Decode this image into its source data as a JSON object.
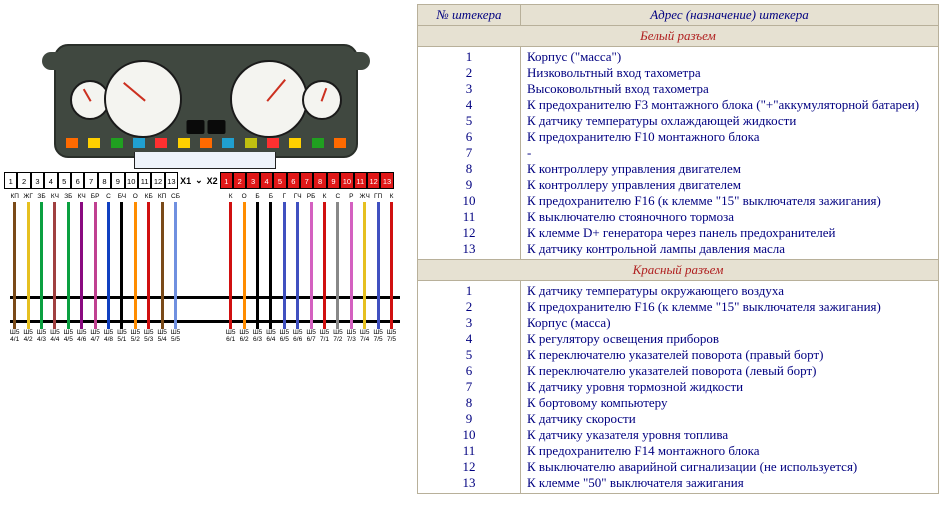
{
  "table": {
    "headers": {
      "col1": "№ штекера",
      "col2": "Адрес (назначение) штекера"
    },
    "section1_title": "Белый разъем",
    "section1_rows": [
      {
        "n": "1",
        "d": "Корпус (\"масса\")"
      },
      {
        "n": "2",
        "d": "Низковольтный вход тахометра"
      },
      {
        "n": "3",
        "d": "Высоковольтный вход тахометра"
      },
      {
        "n": "4",
        "d": "К предохранителю F3 монтажного блока (\"+\"аккумуляторной батареи)"
      },
      {
        "n": "5",
        "d": "К датчику температуры охлаждающей жидкости"
      },
      {
        "n": "6",
        "d": "К предохранителю F10 монтажного блока"
      },
      {
        "n": "7",
        "d": "-"
      },
      {
        "n": "8",
        "d": "К контроллеру управления двигателем"
      },
      {
        "n": "9",
        "d": "К контроллеру управления двигателем"
      },
      {
        "n": "10",
        "d": "К предохранителю F16 (к клемме \"15\" выключателя зажигания)"
      },
      {
        "n": "11",
        "d": "К выключателю стояночного тормоза"
      },
      {
        "n": "12",
        "d": "К клемме D+ генератора через панель предохранителей"
      },
      {
        "n": "13",
        "d": "К датчику контрольной лампы давления масла"
      }
    ],
    "section2_title": "Красный разъем",
    "section2_rows": [
      {
        "n": "1",
        "d": "К датчику температуры окружающего воздуха"
      },
      {
        "n": "2",
        "d": "К предохранителю F16 (к клемме \"15\" выключателя зажигания)"
      },
      {
        "n": "3",
        "d": "Корпус (масса)"
      },
      {
        "n": "4",
        "d": "К регулятору освещения приборов"
      },
      {
        "n": "5",
        "d": "К переключателю указателей поворота (правый борт)"
      },
      {
        "n": "6",
        "d": "К переключателю указателей поворота (левый борт)"
      },
      {
        "n": "7",
        "d": "К датчику уровня тормозной жидкости"
      },
      {
        "n": "8",
        "d": "К бортовому компьютеру"
      },
      {
        "n": "9",
        "d": "К датчику скорости"
      },
      {
        "n": "10",
        "d": "К датчику указателя уровня топлива"
      },
      {
        "n": "11",
        "d": "К предохранителю F14 монтажного блока"
      },
      {
        "n": "12",
        "d": "К выключателю аварийной сигнализации (не используется)"
      },
      {
        "n": "13",
        "d": "К клемме \"50\" выключателя зажигания"
      }
    ]
  },
  "colors": {
    "table_border": "#b8b09a",
    "header_bg": "#e6e1d2",
    "text_navy": "#000080",
    "section_red": "#b02020",
    "cluster_body": "#404840",
    "gauge_face": "#f4f4f0",
    "needle": "#cc3020",
    "pin_red": "#e01818",
    "bus": "#000000"
  },
  "connectors": {
    "white": {
      "label": "X1",
      "pins": [
        "1",
        "2",
        "3",
        "4",
        "5",
        "6",
        "7",
        "8",
        "9",
        "10",
        "11",
        "12",
        "13"
      ],
      "cell_bg": "#ffffff",
      "wires": [
        {
          "tag": "КП",
          "color": "#7a4a18",
          "bot": "Ш5\n4/1"
        },
        {
          "tag": "ЖГ",
          "color": "#e6c020",
          "bot": "Ш5\n4/2"
        },
        {
          "tag": "ЗБ",
          "color": "#0aa040",
          "bot": "Ш5\n4/3"
        },
        {
          "tag": "КЧ",
          "color": "#a04040",
          "bot": "Ш5\n4/4"
        },
        {
          "tag": "ЗБ",
          "color": "#0aa040",
          "bot": "Ш5\n4/5"
        },
        {
          "tag": "КЧ",
          "color": "#8a0a80",
          "bot": "Ш5\n4/6"
        },
        {
          "tag": "БР",
          "color": "#c04090",
          "bot": "Ш5\n4/7"
        },
        {
          "tag": "С",
          "color": "#1040c0",
          "bot": "Ш5\n4/8"
        },
        {
          "tag": "БЧ",
          "color": "#000000",
          "bot": "Ш5\n5/1"
        },
        {
          "tag": "О",
          "color": "#ff8c00",
          "bot": "Ш5\n5/2"
        },
        {
          "tag": "КБ",
          "color": "#d01010",
          "bot": "Ш5\n5/3"
        },
        {
          "tag": "КП",
          "color": "#7a4a18",
          "bot": "Ш5\n5/4"
        },
        {
          "tag": "СБ",
          "color": "#7090e0",
          "bot": "Ш5\n5/5"
        }
      ]
    },
    "red": {
      "label": "X2",
      "pins": [
        "1",
        "2",
        "3",
        "4",
        "5",
        "6",
        "7",
        "8",
        "9",
        "10",
        "11",
        "12",
        "13"
      ],
      "cell_bg": "#e01818",
      "wires": [
        {
          "tag": "К",
          "color": "#d01010",
          "bot": "Ш5\n6/1"
        },
        {
          "tag": "О",
          "color": "#ff8c00",
          "bot": "Ш5\n6/2"
        },
        {
          "tag": "Б",
          "color": "#000000",
          "bot": "Ш5\n6/3"
        },
        {
          "tag": "Б",
          "color": "#000000",
          "bot": "Ш5\n6/4"
        },
        {
          "tag": "Г",
          "color": "#4050c0",
          "bot": "Ш5\n6/5"
        },
        {
          "tag": "ГЧ",
          "color": "#4050c0",
          "bot": "Ш5\n6/6"
        },
        {
          "tag": "РБ",
          "color": "#d460c0",
          "bot": "Ш5\n6/7"
        },
        {
          "tag": "К",
          "color": "#d01010",
          "bot": "Ш5\n7/1"
        },
        {
          "tag": "С",
          "color": "#888888",
          "bot": "Ш5\n7/2"
        },
        {
          "tag": "Р",
          "color": "#d460c0",
          "bot": "Ш5\n7/3"
        },
        {
          "tag": "ЖЧ",
          "color": "#e6c020",
          "bot": "Ш5\n7/4"
        },
        {
          "tag": "ГП",
          "color": "#4050c0",
          "bot": "Ш5\n7/5"
        },
        {
          "tag": "К",
          "color": "#d01010",
          "bot": "Ш5\n7/5"
        }
      ]
    }
  },
  "warn_icons": [
    "#ff6a00",
    "#ffd000",
    "#20a020",
    "#20a0d0",
    "#ff3030",
    "#ffd000",
    "#ff6a00",
    "#20a0d0",
    "#c0c010",
    "#ff3030",
    "#ffd000",
    "#20a020",
    "#ff6a00"
  ],
  "bus_y": [
    102,
    126
  ],
  "layout": {
    "whiteStartX": 2,
    "redStartX": 218,
    "wireSpacing": 13.4,
    "wireAreaHeight": 150
  }
}
